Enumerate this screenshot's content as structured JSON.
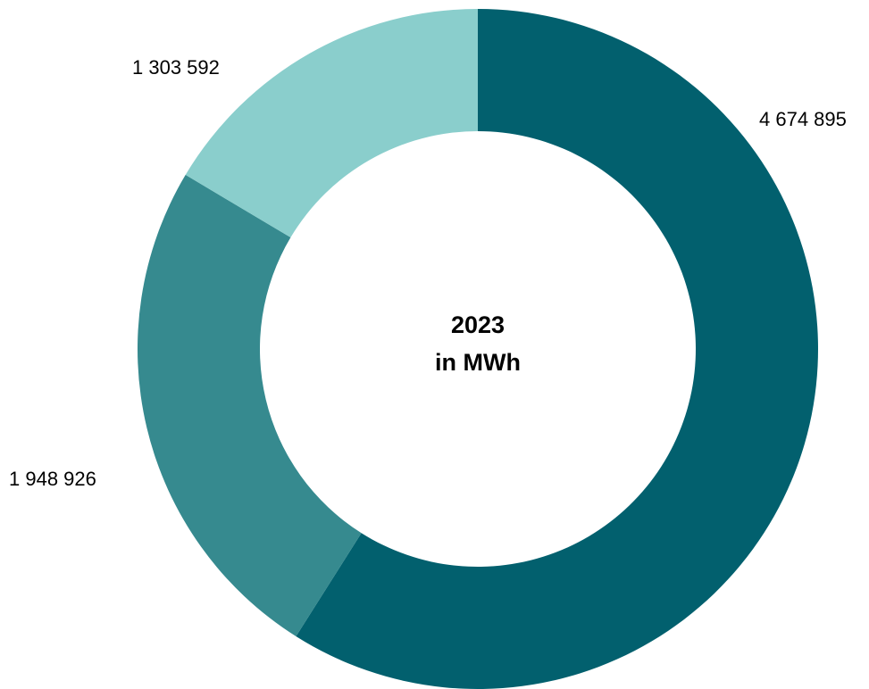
{
  "chart_data": {
    "type": "pie",
    "variant": "donut",
    "center_text": {
      "line1": "2023",
      "line2": "in MWh"
    },
    "slices": [
      {
        "value": 4674895,
        "label": "4 674 895",
        "color": "#02606E"
      },
      {
        "value": 1948926,
        "label": "1 948 926",
        "color": "#368A8F"
      },
      {
        "value": 1303592,
        "label": "1 303 592",
        "color": "#8ACECC"
      }
    ],
    "start_angle_deg": 0,
    "direction": "clockwise",
    "legend": "none"
  }
}
